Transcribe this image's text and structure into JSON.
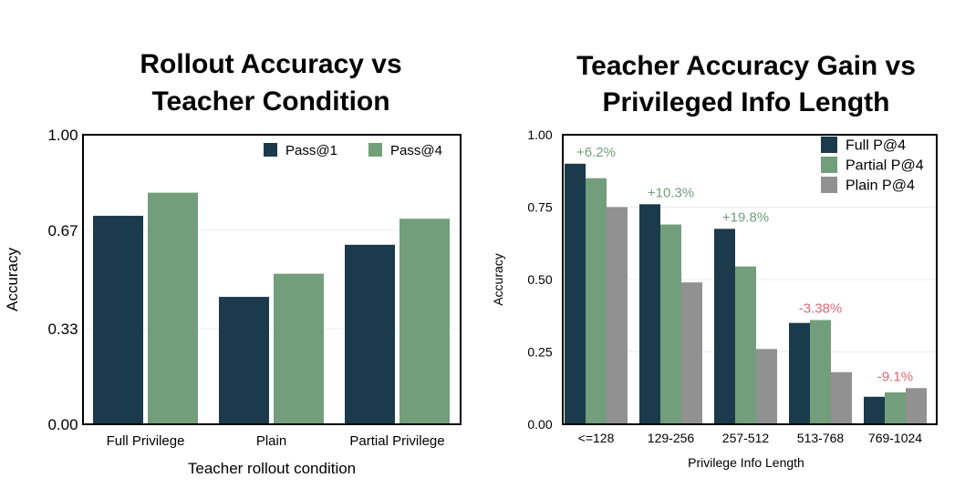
{
  "chart_data": [
    {
      "type": "bar",
      "title_lines": [
        "Rollout Accuracy vs",
        "Teacher Condition"
      ],
      "xlabel": "Teacher rollout condition",
      "ylabel": "Accuracy",
      "categories": [
        "Full Privilege",
        "Plain",
        "Partial Privilege"
      ],
      "ylim": [
        0,
        1
      ],
      "yticks": [
        0,
        0.33,
        0.67,
        1.0
      ],
      "ytick_labels": [
        "0.00",
        "0.33",
        "0.67",
        "1.00"
      ],
      "grid": true,
      "legend_placement": "top-right",
      "legend_layout": "horizontal",
      "series": [
        {
          "name": "Pass@1",
          "color": "#1b3a4b",
          "values": [
            0.72,
            0.44,
            0.62
          ]
        },
        {
          "name": "Pass@4",
          "color": "#739e7b",
          "values": [
            0.8,
            0.52,
            0.71
          ]
        }
      ]
    },
    {
      "type": "bar",
      "title_lines": [
        "Teacher Accuracy Gain vs",
        "Privileged Info Length"
      ],
      "xlabel": "Privilege Info Length",
      "ylabel": "Accuracy",
      "categories": [
        "<=128",
        "129-256",
        "257-512",
        "513-768",
        "769-1024"
      ],
      "ylim": [
        0,
        1
      ],
      "yticks": [
        0,
        0.25,
        0.5,
        0.75,
        1.0
      ],
      "ytick_labels": [
        "0.00",
        "0.25",
        "0.50",
        "0.75",
        "1.00"
      ],
      "grid": true,
      "legend_placement": "top-right",
      "legend_layout": "vertical",
      "series": [
        {
          "name": "Full P@4",
          "color": "#1b3a4b",
          "values": [
            0.9,
            0.76,
            0.675,
            0.35,
            0.095
          ]
        },
        {
          "name": "Partial P@4",
          "color": "#739e7b",
          "values": [
            0.85,
            0.69,
            0.545,
            0.36,
            0.11
          ]
        },
        {
          "name": "Plain P@4",
          "color": "#919191",
          "values": [
            0.75,
            0.49,
            0.26,
            0.18,
            0.125
          ]
        }
      ],
      "annotations": [
        {
          "text": "+6.2%",
          "category_index": 0,
          "color": "#739e7b"
        },
        {
          "text": "+10.3%",
          "category_index": 1,
          "color": "#739e7b"
        },
        {
          "text": "+19.8%",
          "category_index": 2,
          "color": "#739e7b"
        },
        {
          "text": "-3.38%",
          "category_index": 3,
          "color": "#e06870"
        },
        {
          "text": "-9.1%",
          "category_index": 4,
          "color": "#e06870"
        }
      ]
    }
  ]
}
